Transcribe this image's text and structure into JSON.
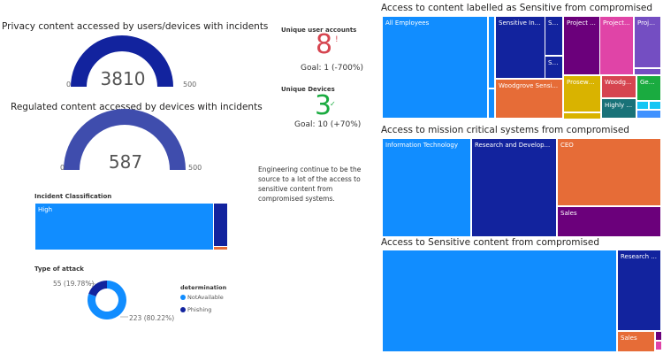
{
  "gauges": [
    {
      "title": "Privacy content accessed by users/devices with incidents",
      "value": "3810",
      "min": "0",
      "max": "500",
      "color": "#12239E"
    },
    {
      "title": "Regulated content accessed by devices with incidents",
      "value": "587",
      "min": "0",
      "max": "500",
      "color": "#3F4DAD"
    }
  ],
  "kpis": [
    {
      "label": "Unique user accounts",
      "value": "8",
      "status_icon": "exclamation-icon",
      "status_glyph": "!",
      "goal": "Goal: 1 (-700%)",
      "color": "#D64550"
    },
    {
      "label": "Unique Devices",
      "value": "3",
      "status_icon": "check-icon",
      "status_glyph": "✓",
      "goal": "Goal: 10 (+70%)",
      "color": "#1AAB40"
    }
  ],
  "note": "Engineering continue to be the source to a lot of the access to sensitive content from compromised systems.",
  "incident_classification": {
    "title": "Incident Classification",
    "tiles": [
      {
        "label": "High",
        "color": "#118DFF"
      },
      {
        "label": "",
        "color": "#12239E"
      },
      {
        "label": "",
        "color": "#E66C37"
      }
    ]
  },
  "type_of_attack": {
    "title": "Type of attack",
    "legend_title": "determination",
    "slices": [
      {
        "name": "NotAvailable",
        "value": 223,
        "label": "223 (80.22%)",
        "color": "#118DFF"
      },
      {
        "name": "Phishing",
        "value": 55,
        "label": "55 (19.78%)",
        "color": "#12239E"
      }
    ]
  },
  "treemaps": [
    {
      "title": "Access to content labelled as Sensitive from compromised",
      "tiles": [
        {
          "label": "All Employees",
          "color": "#118DFF"
        },
        {
          "label": "",
          "color": "#118DFF"
        },
        {
          "label": "",
          "color": "#118DFF"
        },
        {
          "label": "Sensitive Informat...",
          "color": "#12239E"
        },
        {
          "label": "SRE",
          "color": "#12239E"
        },
        {
          "label": "Sa...",
          "color": "#12239E"
        },
        {
          "label": "Woodgrove Sensi...",
          "color": "#E66C37"
        },
        {
          "label": "Project ...",
          "color": "#6B007B"
        },
        {
          "label": "Project...",
          "color": "#E044A7"
        },
        {
          "label": "Proje...",
          "color": "#744EC2"
        },
        {
          "label": "",
          "color": "#744EC2"
        },
        {
          "label": "Prosewa...",
          "color": "#D9B300"
        },
        {
          "label": "",
          "color": "#D9B300"
        },
        {
          "label": "Woodg...",
          "color": "#D64550"
        },
        {
          "label": "Highly ...",
          "color": "#197278"
        },
        {
          "label": "Gen...",
          "color": "#1AAB40"
        },
        {
          "label": "",
          "color": "#15C6F4"
        },
        {
          "label": "",
          "color": "#15C6F4"
        },
        {
          "label": "",
          "color": "#4092FF"
        }
      ]
    },
    {
      "title": "Access to mission critical systems from compromised",
      "tiles": [
        {
          "label": "Information Technology",
          "color": "#118DFF"
        },
        {
          "label": "Research and Develop...",
          "color": "#12239E"
        },
        {
          "label": "CEO",
          "color": "#E66C37"
        },
        {
          "label": "Sales",
          "color": "#6B007B"
        }
      ]
    },
    {
      "title": "Access to Sensitive content from compromised",
      "tiles": [
        {
          "label": "",
          "color": "#118DFF"
        },
        {
          "label": "Research ...",
          "color": "#12239E"
        },
        {
          "label": "Sales",
          "color": "#E66C37"
        },
        {
          "label": "",
          "color": "#6B007B"
        },
        {
          "label": "",
          "color": "#E044A7"
        }
      ]
    }
  ]
}
